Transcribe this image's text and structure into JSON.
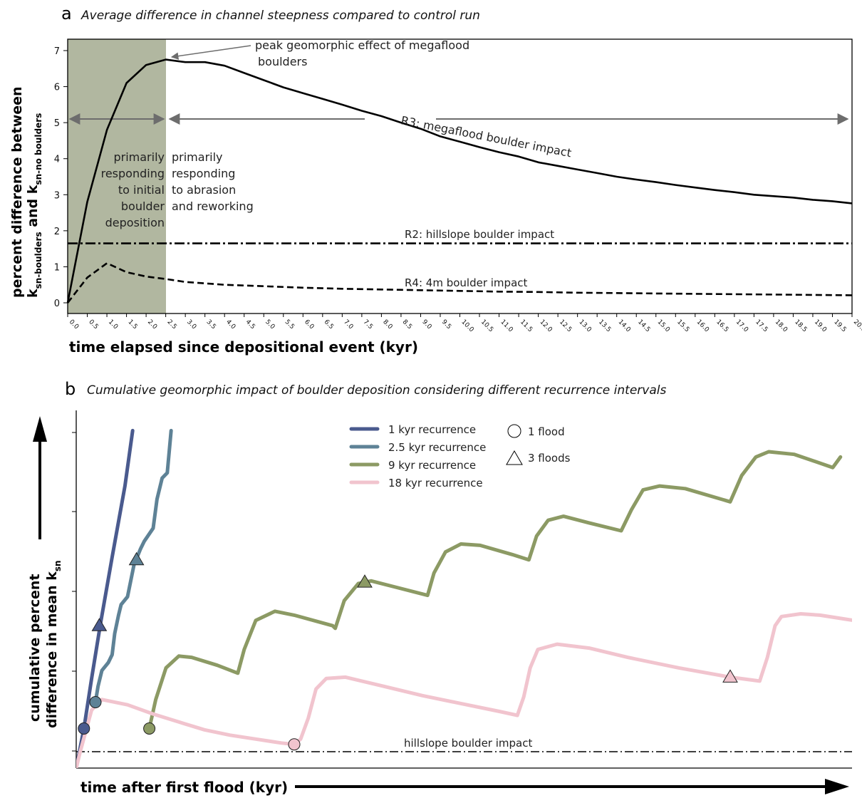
{
  "panel_a": {
    "letter": "a",
    "title": "Average difference in channel steepness compared to control run",
    "annotations": {
      "peak": [
        "peak geomorphic effect of megaflood",
        "boulders"
      ],
      "left_phase": [
        "primarily",
        "responding",
        "to initial",
        "boulder",
        "deposition"
      ],
      "right_phase": [
        "primarily",
        "responding",
        "to abrasion",
        "and reworking"
      ]
    }
  },
  "panel_b": {
    "letter": "b",
    "title": "Cumulative geomorphic impact of boulder deposition considering different recurrence intervals",
    "marker_legend": {
      "circle": "1 flood",
      "triangle": "3 floods"
    }
  },
  "chart_data": [
    {
      "type": "line",
      "title": "Average difference in channel steepness compared to control run",
      "xlabel": "time elapsed since depositional event (kyr)",
      "ylabel_parts": {
        "line1": "percent difference between",
        "k1": "k",
        "sub1": "sn-boulders",
        "mid": " and k",
        "sub2": "sn-no boulders"
      },
      "xlim": [
        0,
        20
      ],
      "ylim": [
        0,
        7
      ],
      "x_ticks": [
        "0.0",
        "0.5",
        "1.0",
        "1.5",
        "2.0",
        "2.5",
        "3.0",
        "3.5",
        "4.0",
        "4.5",
        "5.0",
        "5.5",
        "6.0",
        "6.5",
        "7.0",
        "7.5",
        "8.0",
        "8.5",
        "9.0",
        "9.5",
        "10.0",
        "10.5",
        "11.0",
        "11.5",
        "12.0",
        "12.5",
        "13.0",
        "13.5",
        "14.0",
        "14.5",
        "15.0",
        "15.5",
        "16.0",
        "16.5",
        "17.0",
        "17.5",
        "18.0",
        "18.5",
        "19.0",
        "19.5",
        "20.0"
      ],
      "y_ticks": [
        "0",
        "1",
        "2",
        "3",
        "4",
        "5",
        "6",
        "7"
      ],
      "shaded_region": [
        0,
        2.5
      ],
      "series": [
        {
          "name": "R3: megaflood boulder impact",
          "style": "solid",
          "color": "#000000",
          "points": [
            [
              0,
              0
            ],
            [
              0.5,
              2.8
            ],
            [
              1,
              4.8
            ],
            [
              1.5,
              6.1
            ],
            [
              2,
              6.6
            ],
            [
              2.5,
              6.75
            ],
            [
              3,
              6.68
            ],
            [
              3.5,
              6.68
            ],
            [
              4,
              6.58
            ],
            [
              4.5,
              6.38
            ],
            [
              5,
              6.18
            ],
            [
              5.5,
              5.98
            ],
            [
              6,
              5.82
            ],
            [
              6.5,
              5.66
            ],
            [
              7,
              5.5
            ],
            [
              7.5,
              5.33
            ],
            [
              8,
              5.18
            ],
            [
              8.5,
              5.0
            ],
            [
              9,
              4.83
            ],
            [
              9.5,
              4.62
            ],
            [
              10,
              4.47
            ],
            [
              10.5,
              4.32
            ],
            [
              11,
              4.18
            ],
            [
              11.5,
              4.06
            ],
            [
              12,
              3.9
            ],
            [
              12.5,
              3.8
            ],
            [
              13,
              3.7
            ],
            [
              13.5,
              3.6
            ],
            [
              14,
              3.5
            ],
            [
              14.5,
              3.42
            ],
            [
              15,
              3.35
            ],
            [
              15.5,
              3.27
            ],
            [
              16,
              3.2
            ],
            [
              16.5,
              3.13
            ],
            [
              17,
              3.07
            ],
            [
              17.5,
              3.0
            ],
            [
              18,
              2.96
            ],
            [
              18.5,
              2.92
            ],
            [
              19,
              2.86
            ],
            [
              19.5,
              2.82
            ],
            [
              20,
              2.76
            ]
          ]
        },
        {
          "name": "R2: hillslope boulder impact",
          "style": "dashdot",
          "color": "#000000",
          "points": [
            [
              0,
              1.65
            ],
            [
              20,
              1.65
            ]
          ]
        },
        {
          "name": "R4: 4m boulder impact",
          "style": "dashed",
          "color": "#000000",
          "points": [
            [
              0,
              0
            ],
            [
              0.5,
              0.7
            ],
            [
              1,
              1.1
            ],
            [
              1.5,
              0.85
            ],
            [
              2,
              0.73
            ],
            [
              2.5,
              0.66
            ],
            [
              3,
              0.58
            ],
            [
              4,
              0.5
            ],
            [
              5,
              0.46
            ],
            [
              6,
              0.42
            ],
            [
              7,
              0.39
            ],
            [
              8,
              0.37
            ],
            [
              9,
              0.35
            ],
            [
              10,
              0.33
            ],
            [
              11,
              0.31
            ],
            [
              12,
              0.3
            ],
            [
              13,
              0.28
            ],
            [
              14,
              0.27
            ],
            [
              15,
              0.26
            ],
            [
              16,
              0.25
            ],
            [
              17,
              0.24
            ],
            [
              18,
              0.23
            ],
            [
              19,
              0.22
            ],
            [
              20,
              0.21
            ]
          ]
        }
      ],
      "arrow_spans": [
        [
          0,
          2.5
        ],
        [
          2.5,
          20
        ]
      ]
    },
    {
      "type": "line",
      "title": "Cumulative geomorphic impact of boulder deposition considering different recurrence intervals",
      "xlabel": "time after first flood (kyr)",
      "ylabel_parts": {
        "line1": "cumulative percent",
        "line2": "difference in mean k",
        "sub": "sn"
      },
      "reference_line": {
        "name": "hillslope boulder impact",
        "style": "dashdot",
        "y": 0.65
      },
      "legend_position": "top-center",
      "series": [
        {
          "name": "1 kyr recurrence",
          "color": "#4a5a8e",
          "points": [
            [
              0,
              0
            ],
            [
              0.6,
              1.5
            ],
            [
              1.2,
              3.4
            ],
            [
              1.9,
              5.5
            ],
            [
              2.8,
              8.0
            ],
            [
              3.8,
              10.7
            ],
            [
              4.4,
              12.8
            ]
          ],
          "markers": [
            {
              "type": "circle",
              "x": 0.6,
              "y": 1.5
            },
            {
              "type": "triangle",
              "x": 1.8,
              "y": 5.4
            }
          ]
        },
        {
          "name": "2.5 kyr recurrence",
          "color": "#5e8296",
          "points": [
            [
              1.5,
              2.5
            ],
            [
              1.7,
              3.1
            ],
            [
              2.0,
              3.7
            ],
            [
              2.5,
              4.0
            ],
            [
              2.8,
              4.3
            ],
            [
              3.0,
              5.1
            ],
            [
              3.3,
              5.8
            ],
            [
              3.5,
              6.2
            ],
            [
              4.0,
              6.5
            ],
            [
              4.5,
              7.7
            ],
            [
              5.0,
              8.3
            ],
            [
              5.3,
              8.6
            ],
            [
              6.0,
              9.1
            ],
            [
              6.3,
              10.2
            ],
            [
              6.7,
              11.0
            ],
            [
              7.1,
              11.2
            ],
            [
              7.4,
              12.8
            ]
          ],
          "markers": [
            {
              "type": "circle",
              "x": 1.5,
              "y": 2.5
            },
            {
              "type": "triangle",
              "x": 4.7,
              "y": 7.9
            }
          ]
        },
        {
          "name": "9 kyr recurrence",
          "color": "#8c9a64",
          "points": [
            [
              5.7,
              1.5
            ],
            [
              6.2,
              2.6
            ],
            [
              7.0,
              3.8
            ],
            [
              8.0,
              4.25
            ],
            [
              9.0,
              4.2
            ],
            [
              11.0,
              3.9
            ],
            [
              12.6,
              3.6
            ],
            [
              13.1,
              4.5
            ],
            [
              14.0,
              5.6
            ],
            [
              15.5,
              5.95
            ],
            [
              17.0,
              5.8
            ],
            [
              20.0,
              5.4
            ],
            [
              20.2,
              5.3
            ],
            [
              20.9,
              6.35
            ],
            [
              22.0,
              7.0
            ],
            [
              23.0,
              7.1
            ],
            [
              25.0,
              6.85
            ],
            [
              27.4,
              6.55
            ],
            [
              27.9,
              7.4
            ],
            [
              28.8,
              8.2
            ],
            [
              30.0,
              8.5
            ],
            [
              31.5,
              8.45
            ],
            [
              34.0,
              8.1
            ],
            [
              35.3,
              7.9
            ],
            [
              35.9,
              8.8
            ],
            [
              36.8,
              9.4
            ],
            [
              38.0,
              9.55
            ],
            [
              40.0,
              9.3
            ],
            [
              42.5,
              9.0
            ],
            [
              43.3,
              9.8
            ],
            [
              44.2,
              10.55
            ],
            [
              45.5,
              10.7
            ],
            [
              47.5,
              10.6
            ],
            [
              51.0,
              10.1
            ],
            [
              51.9,
              11.1
            ],
            [
              53.0,
              11.8
            ],
            [
              54.0,
              12.0
            ],
            [
              56.0,
              11.9
            ],
            [
              59.0,
              11.4
            ],
            [
              59.6,
              11.8
            ]
          ],
          "markers": [
            {
              "type": "circle",
              "x": 5.7,
              "y": 1.5
            },
            {
              "type": "triangle",
              "x": 22.5,
              "y": 7.05
            }
          ]
        },
        {
          "name": "18 kyr recurrence",
          "color": "#f1c4ce",
          "points": [
            [
              0,
              0
            ],
            [
              0.3,
              0.6
            ],
            [
              1.2,
              2.2
            ],
            [
              2.0,
              2.6
            ],
            [
              4.0,
              2.4
            ],
            [
              6.0,
              2.05
            ],
            [
              8.0,
              1.75
            ],
            [
              10.0,
              1.45
            ],
            [
              12.0,
              1.25
            ],
            [
              14.0,
              1.1
            ],
            [
              16.0,
              0.95
            ],
            [
              17.0,
              0.9
            ],
            [
              17.5,
              1.1
            ],
            [
              18.1,
              1.9
            ],
            [
              18.7,
              3.0
            ],
            [
              19.5,
              3.4
            ],
            [
              21.0,
              3.45
            ],
            [
              24.0,
              3.1
            ],
            [
              27.0,
              2.75
            ],
            [
              30.0,
              2.45
            ],
            [
              33.0,
              2.15
            ],
            [
              34.4,
              2.0
            ],
            [
              34.9,
              2.7
            ],
            [
              35.4,
              3.8
            ],
            [
              36.0,
              4.5
            ],
            [
              37.5,
              4.7
            ],
            [
              40.0,
              4.55
            ],
            [
              43.0,
              4.2
            ],
            [
              47.0,
              3.8
            ],
            [
              51.0,
              3.45
            ],
            [
              53.3,
              3.3
            ],
            [
              53.9,
              4.2
            ],
            [
              54.5,
              5.4
            ],
            [
              55.0,
              5.75
            ],
            [
              56.5,
              5.85
            ],
            [
              58.0,
              5.8
            ],
            [
              60.0,
              5.65
            ],
            [
              62.0,
              5.5
            ],
            [
              63.8,
              5.35
            ],
            [
              64.0,
              5.33
            ]
          ],
          "markers": [
            {
              "type": "circle",
              "x": 17.0,
              "y": 0.9
            },
            {
              "type": "triangle",
              "x": 51.0,
              "y": 3.45
            }
          ]
        }
      ]
    }
  ]
}
